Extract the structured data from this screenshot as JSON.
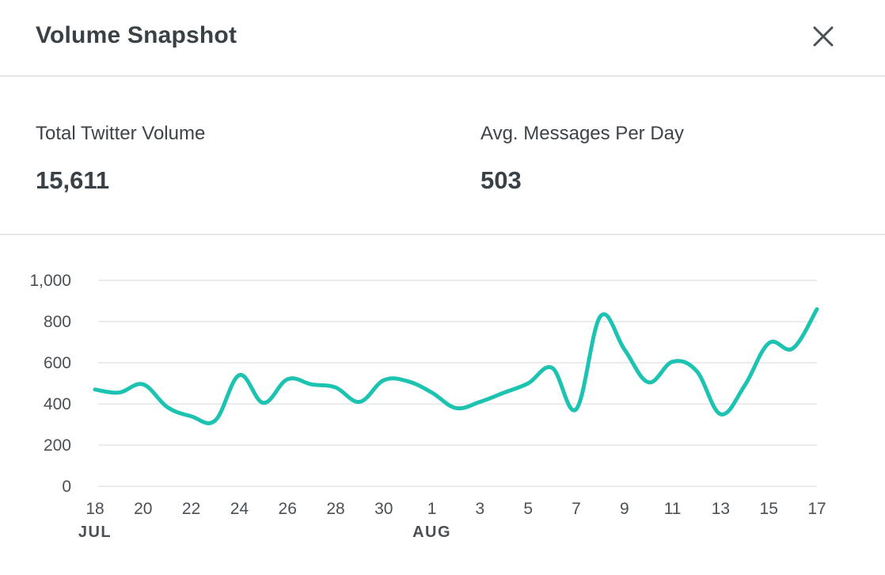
{
  "header": {
    "title": "Volume Snapshot",
    "close_icon": "close-icon"
  },
  "stats": [
    {
      "label": "Total Twitter Volume",
      "value": "15,611"
    },
    {
      "label": "Avg. Messages Per Day",
      "value": "503"
    }
  ],
  "colors": {
    "line": "#1cc3b0",
    "grid": "#e3e5e7",
    "text": "#3d4449"
  },
  "chart_data": {
    "type": "line",
    "title": "",
    "xlabel": "",
    "ylabel": "",
    "ylim": [
      0,
      1000
    ],
    "yticks": [
      0,
      200,
      400,
      600,
      800,
      1000
    ],
    "ytick_labels": [
      "0",
      "200",
      "400",
      "600",
      "800",
      "1,000"
    ],
    "grid": true,
    "xtick_labels": [
      "18",
      "20",
      "22",
      "24",
      "26",
      "28",
      "30",
      "1",
      "3",
      "5",
      "7",
      "9",
      "11",
      "13",
      "15",
      "17"
    ],
    "month_labels": [
      {
        "at": "18",
        "text": "JUL"
      },
      {
        "at": "1",
        "text": "AUG"
      }
    ],
    "x": [
      "Jul 18",
      "Jul 19",
      "Jul 20",
      "Jul 21",
      "Jul 22",
      "Jul 23",
      "Jul 24",
      "Jul 25",
      "Jul 26",
      "Jul 27",
      "Jul 28",
      "Jul 29",
      "Jul 30",
      "Jul 31",
      "Aug 1",
      "Aug 2",
      "Aug 3",
      "Aug 4",
      "Aug 5",
      "Aug 6",
      "Aug 7",
      "Aug 8",
      "Aug 9",
      "Aug 10",
      "Aug 11",
      "Aug 12",
      "Aug 13",
      "Aug 14",
      "Aug 15",
      "Aug 16",
      "Aug 17"
    ],
    "series": [
      {
        "values": [
          470,
          455,
          495,
          385,
          340,
          320,
          540,
          405,
          520,
          495,
          480,
          410,
          515,
          510,
          455,
          380,
          410,
          455,
          500,
          575,
          375,
          825,
          665,
          505,
          605,
          560,
          350,
          490,
          695,
          670,
          860
        ]
      }
    ]
  }
}
